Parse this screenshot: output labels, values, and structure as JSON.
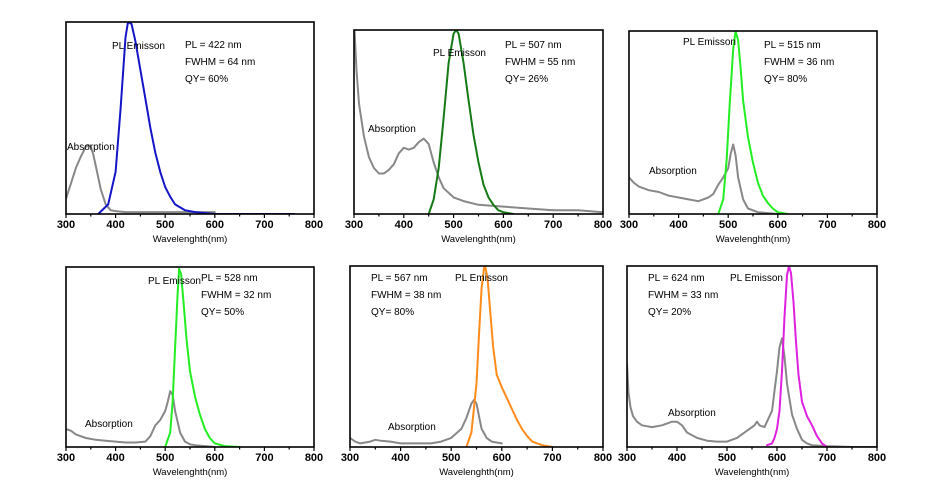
{
  "colors": {
    "absorption": "#888888",
    "series": [
      "#1515c8",
      "#157a15",
      "#22ee22",
      "#22ee22",
      "#ff8c1a",
      "#e020e0"
    ]
  },
  "chart_data": [
    {
      "type": "line",
      "xlabel": "Wavelenghth(nm)",
      "xlim": [
        300,
        800
      ],
      "xticks": [
        "300",
        "400",
        "500",
        "600",
        "700",
        "800"
      ],
      "ylim": [
        0,
        1
      ],
      "annotations": [
        "PL = 422 nm",
        "FWHM = 64 nm",
        "QY= 60%"
      ],
      "series": [
        {
          "name": "PL Emisson",
          "x": [
            365,
            385,
            400,
            410,
            420,
            425,
            432,
            440,
            450,
            460,
            470,
            480,
            490,
            500,
            510,
            520,
            540,
            560,
            600,
            700,
            760
          ],
          "y": [
            0,
            0.05,
            0.22,
            0.55,
            0.92,
            1.0,
            0.99,
            0.9,
            0.75,
            0.6,
            0.45,
            0.32,
            0.22,
            0.14,
            0.09,
            0.05,
            0.02,
            0.01,
            0,
            0,
            0
          ]
        },
        {
          "name": "Absorption",
          "x": [
            300,
            310,
            320,
            330,
            340,
            345,
            350,
            355,
            360,
            370,
            380,
            390,
            400,
            420,
            450,
            500,
            550,
            600
          ],
          "y": [
            0.08,
            0.16,
            0.24,
            0.3,
            0.35,
            0.36,
            0.35,
            0.31,
            0.25,
            0.13,
            0.05,
            0.02,
            0.015,
            0.01,
            0.01,
            0.01,
            0.01,
            0.01
          ]
        }
      ]
    },
    {
      "type": "line",
      "xlabel": "Wavelenghth(nm)",
      "xlim": [
        300,
        800
      ],
      "xticks": [
        "300",
        "400",
        "500",
        "600",
        "700",
        "800"
      ],
      "ylim": [
        0,
        1
      ],
      "annotations": [
        "PL = 507 nm",
        "FWHM = 55 nm",
        "QY= 26%"
      ],
      "series": [
        {
          "name": "PL Emisson",
          "x": [
            450,
            460,
            470,
            480,
            490,
            500,
            505,
            510,
            520,
            530,
            540,
            550,
            560,
            570,
            580,
            590,
            600,
            620
          ],
          "y": [
            0,
            0.08,
            0.25,
            0.52,
            0.82,
            0.98,
            1.0,
            0.98,
            0.82,
            0.62,
            0.43,
            0.28,
            0.16,
            0.09,
            0.05,
            0.02,
            0.01,
            0
          ]
        },
        {
          "name": "Absorption",
          "x": [
            300,
            305,
            310,
            320,
            330,
            340,
            350,
            360,
            370,
            380,
            390,
            400,
            410,
            420,
            430,
            440,
            450,
            460,
            470,
            480,
            500,
            520,
            550,
            600,
            650,
            700,
            750,
            800
          ],
          "y": [
            1.06,
            0.78,
            0.6,
            0.42,
            0.31,
            0.25,
            0.22,
            0.22,
            0.24,
            0.27,
            0.33,
            0.36,
            0.35,
            0.36,
            0.39,
            0.41,
            0.38,
            0.28,
            0.2,
            0.14,
            0.09,
            0.07,
            0.05,
            0.04,
            0.03,
            0.02,
            0.02,
            0.01
          ]
        }
      ]
    },
    {
      "type": "line",
      "xlabel": "Wavelenghth(nm)",
      "xlim": [
        300,
        800
      ],
      "xticks": [
        "300",
        "400",
        "500",
        "600",
        "700",
        "800"
      ],
      "ylim": [
        0,
        1
      ],
      "annotations": [
        "PL = 515 nm",
        "FWHM = 36 nm",
        "QY= 80%"
      ],
      "series": [
        {
          "name": "PL Emisson",
          "x": [
            480,
            490,
            497,
            503,
            510,
            515,
            520,
            525,
            530,
            540,
            550,
            560,
            570,
            580,
            590,
            600,
            610,
            620
          ],
          "y": [
            0,
            0.08,
            0.3,
            0.6,
            0.9,
            1.0,
            0.95,
            0.8,
            0.62,
            0.42,
            0.28,
            0.17,
            0.1,
            0.06,
            0.03,
            0.01,
            0.005,
            0
          ]
        },
        {
          "name": "Absorption",
          "x": [
            300,
            310,
            320,
            340,
            360,
            380,
            400,
            420,
            440,
            460,
            470,
            480,
            490,
            500,
            505,
            510,
            515,
            520,
            530,
            540,
            560,
            580,
            600,
            620
          ],
          "y": [
            0.2,
            0.17,
            0.15,
            0.13,
            0.12,
            0.1,
            0.09,
            0.08,
            0.07,
            0.09,
            0.11,
            0.16,
            0.2,
            0.25,
            0.33,
            0.38,
            0.32,
            0.2,
            0.08,
            0.03,
            0.01,
            0.005,
            0,
            0
          ]
        }
      ]
    },
    {
      "type": "line",
      "xlabel": "Wavelenghth(nm)",
      "xlim": [
        300,
        800
      ],
      "xticks": [
        "300",
        "400",
        "500",
        "600",
        "700",
        "800"
      ],
      "ylim": [
        0,
        1
      ],
      "annotations": [
        "PL = 528 nm",
        "FWHM = 32 nm",
        "QY= 50%"
      ],
      "series": [
        {
          "name": "PL Emisson",
          "x": [
            500,
            510,
            515,
            520,
            525,
            528,
            532,
            537,
            543,
            550,
            560,
            570,
            580,
            590,
            600,
            620,
            650
          ],
          "y": [
            0,
            0.08,
            0.25,
            0.55,
            0.85,
            0.99,
            0.96,
            0.8,
            0.6,
            0.42,
            0.28,
            0.18,
            0.1,
            0.05,
            0.02,
            0.005,
            0
          ]
        },
        {
          "name": "Absorption",
          "x": [
            300,
            310,
            320,
            340,
            360,
            380,
            400,
            420,
            440,
            460,
            470,
            480,
            490,
            500,
            505,
            510,
            515,
            520,
            530,
            540,
            550,
            560,
            580,
            600
          ],
          "y": [
            0.1,
            0.09,
            0.07,
            0.05,
            0.04,
            0.035,
            0.03,
            0.025,
            0.025,
            0.03,
            0.06,
            0.12,
            0.15,
            0.2,
            0.25,
            0.31,
            0.29,
            0.2,
            0.08,
            0.03,
            0.015,
            0.01,
            0.005,
            0
          ]
        }
      ]
    },
    {
      "type": "line",
      "xlabel": "Wavelenghth(nm)",
      "xlim": [
        300,
        800
      ],
      "xticks": [
        "300",
        "400",
        "500",
        "600",
        "700",
        "800"
      ],
      "ylim": [
        0,
        1
      ],
      "annotations": [
        "PL = 567 nm",
        "FWHM = 38 nm",
        "QY= 80%"
      ],
      "series": [
        {
          "name": "PL Emisson",
          "x": [
            530,
            540,
            550,
            555,
            560,
            565,
            567,
            572,
            577,
            583,
            590,
            600,
            610,
            620,
            630,
            640,
            650,
            660,
            670,
            680,
            690,
            700
          ],
          "y": [
            0,
            0.08,
            0.35,
            0.62,
            0.88,
            0.99,
            1.0,
            0.93,
            0.75,
            0.55,
            0.4,
            0.33,
            0.27,
            0.21,
            0.15,
            0.1,
            0.06,
            0.03,
            0.02,
            0.01,
            0.005,
            0
          ]
        },
        {
          "name": "Absorption",
          "x": [
            300,
            310,
            320,
            330,
            340,
            350,
            360,
            380,
            400,
            420,
            440,
            460,
            480,
            500,
            520,
            530,
            535,
            540,
            545,
            550,
            555,
            560,
            570,
            580,
            600
          ],
          "y": [
            0.05,
            0.03,
            0.02,
            0.025,
            0.03,
            0.04,
            0.035,
            0.03,
            0.02,
            0.02,
            0.02,
            0.02,
            0.03,
            0.05,
            0.1,
            0.16,
            0.2,
            0.24,
            0.26,
            0.24,
            0.17,
            0.1,
            0.05,
            0.03,
            0.02
          ]
        }
      ]
    },
    {
      "type": "line",
      "xlabel": "Wavelenghth(nm)",
      "xlim": [
        300,
        800
      ],
      "xticks": [
        "300",
        "400",
        "500",
        "600",
        "700",
        "800"
      ],
      "ylim": [
        0,
        1
      ],
      "annotations": [
        "PL = 624 nm",
        "FWHM = 33 nm",
        "QY= 20%"
      ],
      "series": [
        {
          "name": "PL Emisson",
          "x": [
            580,
            590,
            595,
            600,
            605,
            610,
            615,
            620,
            624,
            628,
            633,
            638,
            643,
            650,
            660,
            670,
            680,
            690,
            700
          ],
          "y": [
            0.01,
            0.02,
            0.05,
            0.1,
            0.2,
            0.42,
            0.72,
            0.95,
            1.0,
            0.96,
            0.8,
            0.58,
            0.4,
            0.25,
            0.17,
            0.12,
            0.06,
            0.02,
            0
          ]
        },
        {
          "name": "Absorption",
          "x": [
            300,
            303,
            307,
            312,
            320,
            330,
            350,
            370,
            390,
            400,
            410,
            420,
            440,
            460,
            480,
            500,
            520,
            540,
            555,
            560,
            565,
            575,
            590,
            600,
            605,
            610,
            615,
            620,
            630,
            640,
            650,
            660,
            670,
            700,
            750,
            800
          ],
          "y": [
            0.46,
            0.3,
            0.22,
            0.17,
            0.14,
            0.12,
            0.11,
            0.12,
            0.14,
            0.14,
            0.12,
            0.08,
            0.05,
            0.035,
            0.03,
            0.03,
            0.05,
            0.09,
            0.12,
            0.14,
            0.12,
            0.11,
            0.2,
            0.42,
            0.55,
            0.6,
            0.5,
            0.35,
            0.18,
            0.1,
            0.04,
            0.02,
            0.01,
            0.005,
            0,
            0
          ]
        }
      ]
    }
  ]
}
